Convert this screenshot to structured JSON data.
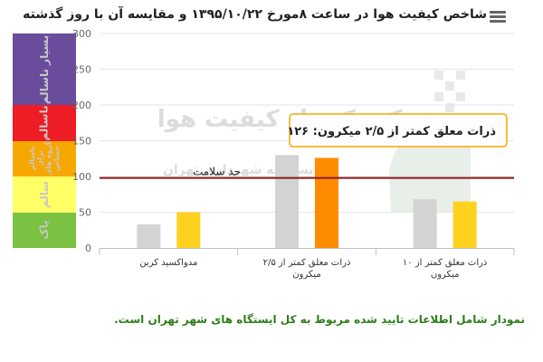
{
  "header": {
    "title": "شاخص کیفیت هوا در ساعت ۸مورخ ۱۳۹۵/۱۰/۲۲ و مقایسه آن با روز گذشته",
    "menu_icon": "hamburger-menu-icon"
  },
  "aqi_bands": [
    {
      "label": "بسیار ناسالم",
      "color": "#6a4c9c",
      "from": 200,
      "to": 300
    },
    {
      "label": "ناسالم",
      "color": "#ee1c25",
      "from": 150,
      "to": 200
    },
    {
      "label": "ناسالم برای گروه های حساس",
      "color": "#f7a800",
      "from": 100,
      "to": 150
    },
    {
      "label": "سالم",
      "color": "#ffff66",
      "from": 50,
      "to": 100
    },
    {
      "label": "پاک",
      "color": "#7bc142",
      "from": 0,
      "to": 50
    }
  ],
  "chart_data": {
    "type": "bar",
    "categories": [
      "مدواکسید کربن",
      "ذرات معلق کمتر از ۲/۵ میکرون",
      "ذرات معلق کمتر از ۱۰ میکرون"
    ],
    "series": [
      {
        "values": [
          33,
          130,
          68
        ],
        "color": "#d3d3d3"
      },
      {
        "values": [
          50,
          126,
          65
        ],
        "color": "#ffd21f"
      }
    ],
    "highlight": {
      "category_index": 1,
      "series_index": 1,
      "color": "#ff8c00"
    },
    "ylim": [
      0,
      300
    ],
    "yticks": [
      "300",
      "250",
      "200",
      "150",
      "100",
      "50",
      "0"
    ],
    "threshold": {
      "value": 98,
      "label": "حد سلامت",
      "color": "#8b1a1a"
    },
    "tooltip": "ذرات معلق کمتر از ۲/۵ میکرون: ۱۲۶"
  },
  "watermark": {
    "line1": "شرکت کنترل کیفیت هوا",
    "line2": "وابسته به شهرداری تهران"
  },
  "footer": {
    "note": "نمودار شامل اطلاعات تایید شده مربوط به کل ایستگاه های شهر تهران است."
  }
}
